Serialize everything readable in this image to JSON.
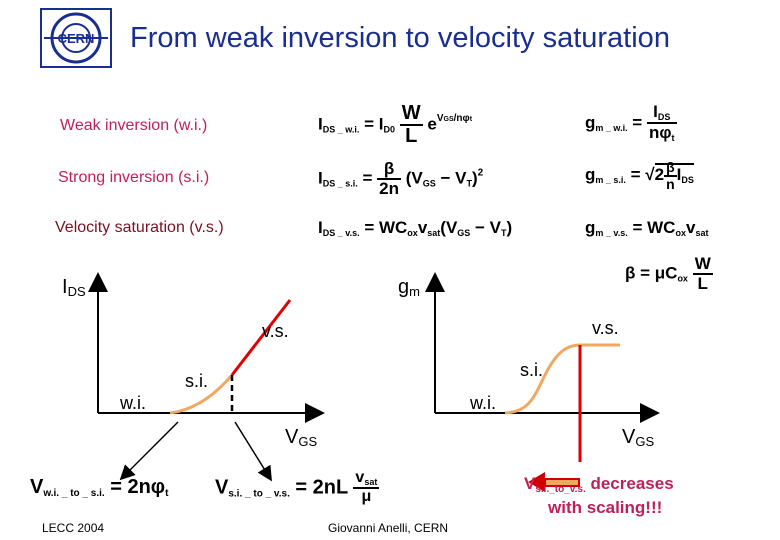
{
  "title": "From weak inversion to velocity saturation",
  "regions": {
    "wi": "Weak inversion (w.i.)",
    "si": "Strong inversion (s.i.)",
    "vs": "Velocity saturation (v.s.)"
  },
  "left_plot": {
    "ylabel": "I",
    "ylabel_sub": "DS",
    "xlabel": "V",
    "xlabel_sub": "GS",
    "label_wi": "w.i.",
    "label_si": "s.i.",
    "label_vs": "v.s."
  },
  "right_plot": {
    "ylabel": "g",
    "ylabel_sub": "m",
    "xlabel": "V",
    "xlabel_sub": "GS",
    "label_wi": "w.i.",
    "label_si": "s.i.",
    "label_vs": "v.s."
  },
  "note": {
    "v": "V",
    "sub": "s.i._to_v.s.",
    "line1": " decreases",
    "line2": "with scaling!!!"
  },
  "footer": {
    "left": "LECC 2004",
    "center": "Giovanni Anelli, CERN"
  },
  "logo": {
    "text": "CERN"
  },
  "colors": {
    "title": "#1a2e8f",
    "orange_curve": "#f0a860",
    "red_curve": "#e00000",
    "arrow": "#d00000"
  }
}
